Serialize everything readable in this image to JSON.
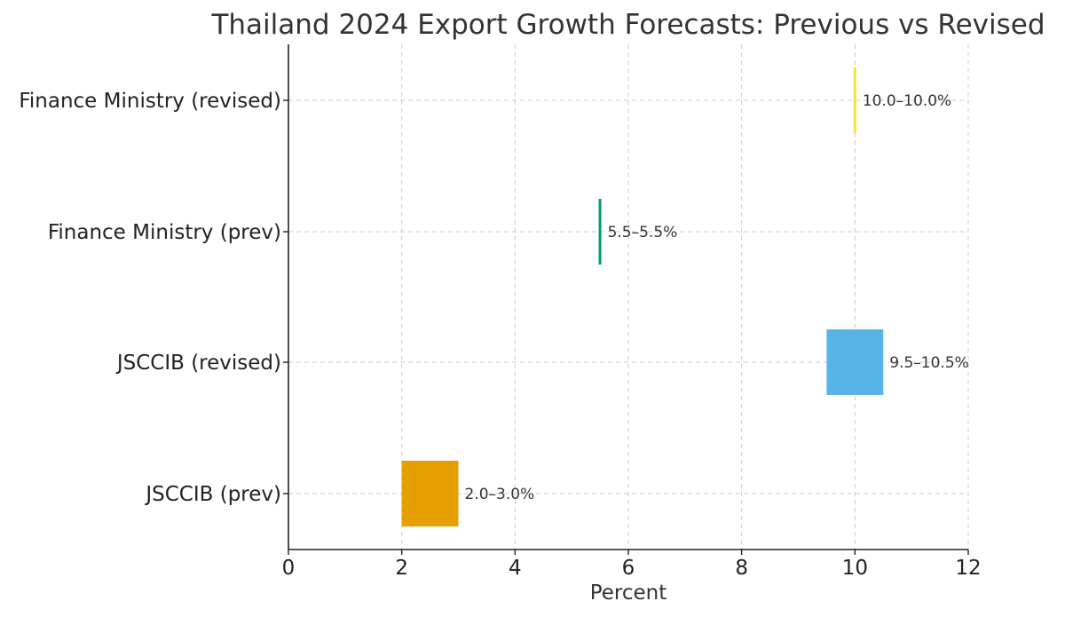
{
  "chart_data": {
    "type": "bar",
    "orientation": "horizontal-range",
    "title": "Thailand 2024 Export Growth Forecasts: Previous vs Revised",
    "xlabel": "Percent",
    "ylabel": "",
    "xlim": [
      0,
      12
    ],
    "xticks": [
      0,
      2,
      4,
      6,
      8,
      10,
      12
    ],
    "grid": true,
    "categories": [
      "JSCCIB (prev)",
      "JSCCIB (revised)",
      "Finance Ministry (prev)",
      "Finance Ministry (revised)"
    ],
    "ranges": [
      {
        "low": 2.0,
        "high": 3.0,
        "label": "2.0–3.0%",
        "color": "#e69f00"
      },
      {
        "low": 9.5,
        "high": 10.5,
        "label": "9.5–10.5%",
        "color": "#56b4e9"
      },
      {
        "low": 5.5,
        "high": 5.5,
        "label": "5.5–5.5%",
        "color": "#009e73"
      },
      {
        "low": 10.0,
        "high": 10.0,
        "label": "10.0–10.0%",
        "color": "#f0e442"
      }
    ]
  }
}
